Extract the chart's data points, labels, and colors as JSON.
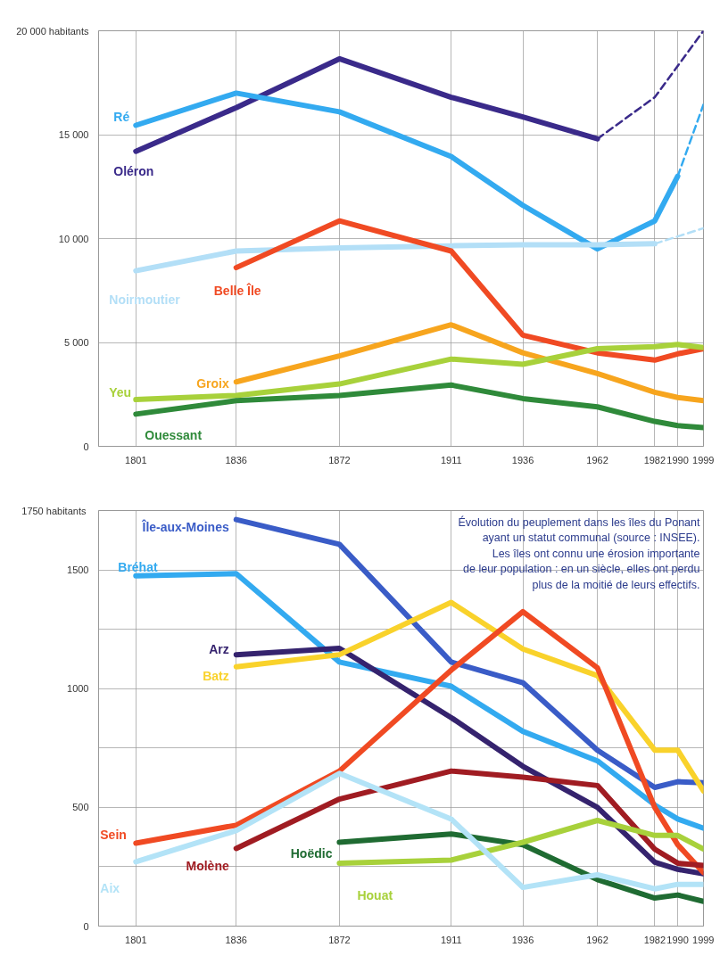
{
  "chart_data": [
    {
      "type": "line",
      "x": [
        1801,
        1836,
        1872,
        1911,
        1936,
        1962,
        1982,
        1990,
        1999
      ],
      "xlim": [
        1788,
        1999
      ],
      "xticks": [
        1801,
        1836,
        1872,
        1911,
        1936,
        1962,
        1982,
        1990,
        1999
      ],
      "ylim": [
        0,
        20000
      ],
      "yticks": [
        0,
        {
          "value": 5000,
          "label": "5 000"
        },
        {
          "value": 10000,
          "label": "10 000"
        },
        {
          "value": 15000,
          "label": "15 000"
        },
        {
          "value": 20000,
          "label": "20 000 habitants"
        }
      ],
      "grid": true,
      "series": [
        {
          "name": "Oléron",
          "color": "#3a2a8a",
          "values": [
            14200,
            16300,
            18650,
            16800,
            15850,
            14800,
            null,
            null,
            null
          ]
        },
        {
          "color": "#3a2a8a",
          "line_style": "dashed",
          "x": [
            1962,
            1982,
            1999
          ],
          "values": [
            14800,
            16800,
            20000
          ]
        },
        {
          "name": "Ré",
          "color": "#33aaf0",
          "values": [
            15450,
            17000,
            16100,
            13950,
            11600,
            9500,
            10850,
            13000,
            null
          ]
        },
        {
          "color": "#33aaf0",
          "line_style": "dashed",
          "x": [
            1990,
            1999
          ],
          "values": [
            13000,
            16450
          ]
        },
        {
          "name": "Noirmoutier",
          "color": "#b3dff7",
          "values": [
            8450,
            9400,
            9550,
            9650,
            9700,
            9700,
            9750,
            null,
            null
          ]
        },
        {
          "color": "#b3dff7",
          "line_style": "dashed",
          "x": [
            1982,
            1999
          ],
          "values": [
            9750,
            10500
          ]
        },
        {
          "name": "Belle Île",
          "color": "#f04a23",
          "values": [
            null,
            8600,
            10850,
            9400,
            5350,
            4500,
            4150,
            4450,
            4700
          ]
        },
        {
          "name": "Groix",
          "color": "#f7a51e",
          "values": [
            null,
            3100,
            4350,
            5850,
            4500,
            3500,
            2600,
            2350,
            2200
          ]
        },
        {
          "name": "Yeu",
          "color": "#a8d13b",
          "values": [
            2250,
            2450,
            3000,
            4200,
            3950,
            4700,
            4800,
            4900,
            4750
          ]
        },
        {
          "name": "Ouessant",
          "color": "#2f8a3a",
          "values": [
            1550,
            2200,
            2450,
            2950,
            2300,
            1900,
            1200,
            1000,
            900
          ]
        }
      ]
    },
    {
      "type": "line",
      "x": [
        1801,
        1836,
        1872,
        1911,
        1936,
        1962,
        1982,
        1990,
        1999
      ],
      "xlim": [
        1788,
        1999
      ],
      "xticks": [
        1801,
        1836,
        1872,
        1911,
        1936,
        1962,
        1982,
        1990,
        1999
      ],
      "ylim": [
        0,
        1750
      ],
      "yticks": [
        0,
        {
          "value": 250,
          "label": null
        },
        500,
        {
          "value": 750,
          "label": null
        },
        1000,
        {
          "value": 1250,
          "label": null
        },
        1500,
        {
          "value": 1750,
          "label": "1750  habitants"
        }
      ],
      "grid": true,
      "annotations": [
        "Évolution du peuplement dans les îles du Ponant\nayant un statut communal (source : INSEE).\nLes îles ont connu une érosion importante\nde leur population : en un siècle, elles ont perdu\nplus de la moitié de leurs effectifs."
      ],
      "series": [
        {
          "name": "Île-aux-Moines",
          "color": "#3a5cc7",
          "values": [
            null,
            1712,
            1608,
            1112,
            1025,
            741,
            584,
            608,
            604
          ]
        },
        {
          "name": "Bréhat",
          "color": "#33aaf0",
          "values": [
            1475,
            1484,
            1112,
            1010,
            820,
            696,
            510,
            451,
            412
          ]
        },
        {
          "name": "Arz",
          "color": "#35236e",
          "values": [
            null,
            1143,
            1170,
            878,
            673,
            500,
            269,
            239,
            220
          ]
        },
        {
          "name": "Batz",
          "color": "#f9d22b",
          "values": [
            null,
            1092,
            1143,
            1363,
            1167,
            1055,
            741,
            741,
            569
          ]
        },
        {
          "name": "Sein",
          "color": "#f04a23",
          "values": [
            349,
            425,
            653,
            1078,
            1324,
            1088,
            500,
            343,
            225
          ]
        },
        {
          "name": "Molène",
          "color": "#a01c22",
          "values": [
            null,
            327,
            535,
            653,
            627,
            592,
            324,
            265,
            255
          ]
        },
        {
          "name": "Hoëdic",
          "color": "#1f6b32",
          "values": [
            null,
            null,
            353,
            388,
            343,
            196,
            118,
            131,
            104
          ]
        },
        {
          "name": "Houat",
          "color": "#a8d13b",
          "values": [
            null,
            null,
            265,
            278,
            353,
            445,
            382,
            382,
            324
          ]
        },
        {
          "name": "Aix",
          "color": "#b3e3f7",
          "values": [
            271,
            402,
            643,
            451,
            163,
            216,
            157,
            176,
            176
          ]
        }
      ]
    }
  ]
}
